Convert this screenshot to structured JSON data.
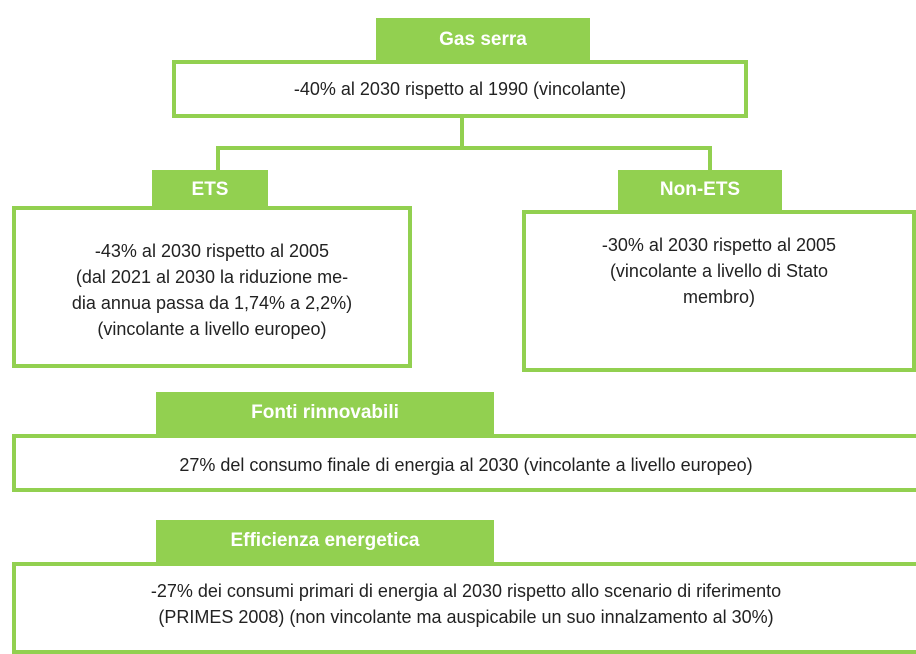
{
  "nodes": [
    {
      "label": "Gas serra",
      "lines": [
        "-40% al 2030 rispetto al 1990 (vincolante)"
      ]
    },
    {
      "label": "ETS",
      "lines": [
        "-43% al 2030 rispetto al 2005",
        "(dal 2021 al 2030 la riduzione me-",
        "dia annua passa da 1,74% a 2,2%)",
        "(vincolante a livello europeo)"
      ]
    },
    {
      "label": "Non-ETS",
      "lines": [
        "-30% al 2030 rispetto al 2005",
        "(vincolante a livello di Stato",
        "membro)"
      ]
    },
    {
      "label": "Fonti rinnovabili",
      "lines": [
        "27% del consumo finale di energia al 2030 (vincolante a livello europeo)"
      ]
    },
    {
      "label": "Efficienza energetica",
      "lines": [
        "-27% dei consumi primari di energia al 2030 rispetto allo scenario di riferimento",
        "(PRIMES 2008) (non vincolante ma auspicabile un suo innalzamento al 30%)"
      ]
    }
  ]
}
